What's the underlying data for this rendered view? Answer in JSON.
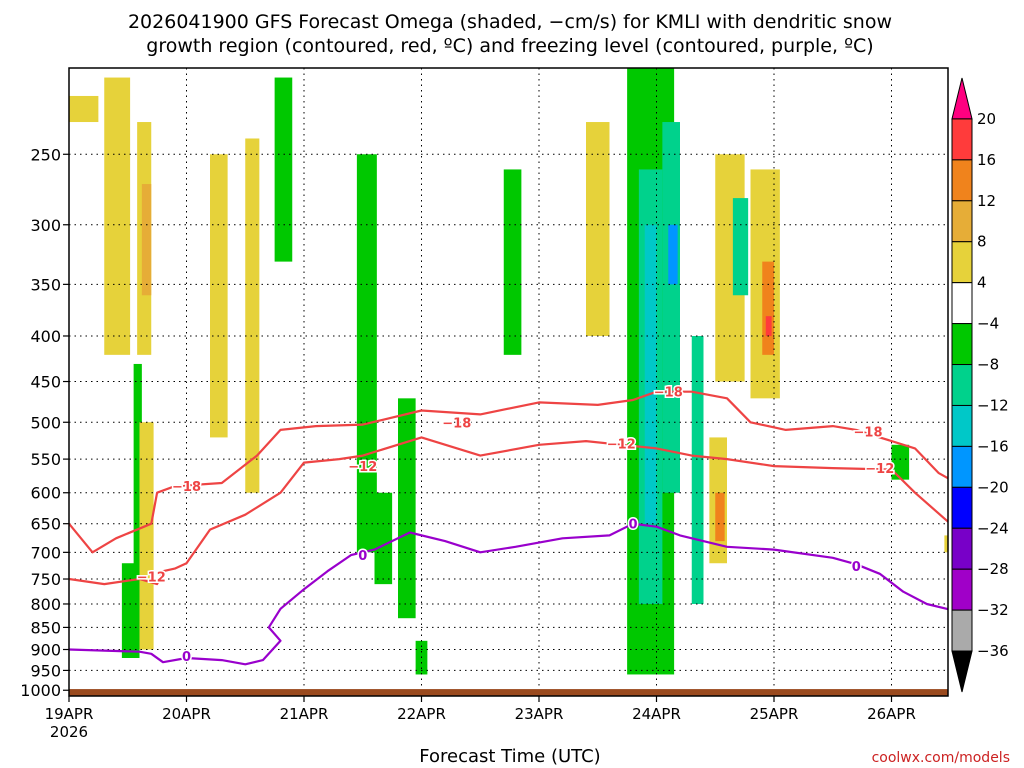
{
  "chart_data": {
    "type": "heatmap",
    "title_line1": "2026041900 GFS Forecast Omega (shaded, −cm/s) for KMLI with dendritic snow",
    "title_line2": "growth region (contoured, red, ºC) and freezing level (contoured, purple, ºC)",
    "xlabel": "Forecast Time (UTC)",
    "watermark": "coolwx.com/models",
    "x_ticks": [
      {
        "day": 0,
        "label": "19APR"
      },
      {
        "day": 1,
        "label": "20APR"
      },
      {
        "day": 2,
        "label": "21APR"
      },
      {
        "day": 3,
        "label": "22APR"
      },
      {
        "day": 4,
        "label": "23APR"
      },
      {
        "day": 5,
        "label": "24APR"
      },
      {
        "day": 6,
        "label": "25APR"
      },
      {
        "day": 7,
        "label": "26APR"
      }
    ],
    "x_year_label": "2026",
    "xlim": [
      0,
      7.5
    ],
    "y_ticks": [
      250,
      300,
      350,
      400,
      450,
      500,
      550,
      600,
      650,
      700,
      750,
      800,
      850,
      900,
      950,
      1000
    ],
    "ylim_hpa": [
      200,
      1015
    ],
    "ground_hpa": 997,
    "colorbar": {
      "labels": [
        "20",
        "16",
        "12",
        "8",
        "4",
        "−4",
        "−8",
        "−12",
        "−16",
        "−20",
        "−24",
        "−28",
        "−32",
        "−36"
      ],
      "colors": [
        "#ff0080",
        "#ff3b3b",
        "#f0831c",
        "#e6ad37",
        "#e6d23a",
        "#ffffff",
        "#00c800",
        "#00d28c",
        "#00c8c8",
        "#0096ff",
        "#0000ff",
        "#7800c8",
        "#a000c8",
        "#aaaaaa",
        "#000000"
      ]
    },
    "colors": {
      "contour_red": "#ee4444",
      "contour_purple": "#9900cc",
      "ground": "#9a4a1e",
      "neg4": "#00c800",
      "neg8": "#00d28c",
      "neg12": "#00c8c8",
      "neg16": "#0096ff",
      "neg20": "#0000ff",
      "pos4": "#e6d23a",
      "pos8": "#e6ad37",
      "pos12": "#f0831c",
      "pos16": "#ff3b3b"
    },
    "contours": [
      {
        "level": "-18",
        "label": "−18",
        "color": "contour_red",
        "points": [
          [
            0,
            650
          ],
          [
            0.2,
            700
          ],
          [
            0.4,
            675
          ],
          [
            0.7,
            650
          ],
          [
            0.75,
            600
          ],
          [
            0.9,
            590
          ],
          [
            1.3,
            585
          ],
          [
            1.6,
            545
          ],
          [
            1.8,
            510
          ],
          [
            2.1,
            505
          ],
          [
            2.5,
            503
          ],
          [
            3,
            485
          ],
          [
            3.5,
            490
          ],
          [
            4,
            475
          ],
          [
            4.5,
            478
          ],
          [
            4.8,
            472
          ],
          [
            5.0,
            462
          ],
          [
            5.3,
            462
          ],
          [
            5.6,
            470
          ],
          [
            5.8,
            500
          ],
          [
            6.1,
            510
          ],
          [
            6.5,
            505
          ],
          [
            6.7,
            510
          ],
          [
            6.9,
            520
          ],
          [
            7.2,
            535
          ],
          [
            7.4,
            570
          ],
          [
            7.5,
            580
          ]
        ],
        "labels": [
          [
            1.0,
            590
          ],
          [
            3.3,
            500
          ],
          [
            5.1,
            462
          ],
          [
            6.8,
            512
          ]
        ]
      },
      {
        "level": "-12",
        "label": "−12",
        "color": "contour_red",
        "points": [
          [
            0,
            750
          ],
          [
            0.3,
            760
          ],
          [
            0.6,
            750
          ],
          [
            0.75,
            760
          ],
          [
            0.8,
            735
          ],
          [
            0.9,
            730
          ],
          [
            1.0,
            720
          ],
          [
            1.2,
            660
          ],
          [
            1.5,
            635
          ],
          [
            1.8,
            600
          ],
          [
            2.0,
            555
          ],
          [
            2.3,
            550
          ],
          [
            2.5,
            545
          ],
          [
            3,
            520
          ],
          [
            3.5,
            545
          ],
          [
            4,
            530
          ],
          [
            4.4,
            525
          ],
          [
            4.7,
            530
          ],
          [
            5.0,
            535
          ],
          [
            5.3,
            545
          ],
          [
            5.6,
            550
          ],
          [
            6.0,
            560
          ],
          [
            6.5,
            563
          ],
          [
            7.0,
            565
          ],
          [
            7.2,
            600
          ],
          [
            7.5,
            650
          ]
        ],
        "labels": [
          [
            0.7,
            745
          ],
          [
            2.5,
            560
          ],
          [
            4.7,
            528
          ],
          [
            6.9,
            563
          ]
        ]
      },
      {
        "level": "0",
        "label": "0",
        "color": "contour_purple",
        "points": [
          [
            0,
            900
          ],
          [
            0.6,
            905
          ],
          [
            0.7,
            910
          ],
          [
            0.8,
            930
          ],
          [
            1.0,
            920
          ],
          [
            1.3,
            925
          ],
          [
            1.5,
            935
          ],
          [
            1.65,
            925
          ],
          [
            1.8,
            880
          ],
          [
            1.7,
            850
          ],
          [
            1.8,
            810
          ],
          [
            2.0,
            770
          ],
          [
            2.2,
            735
          ],
          [
            2.4,
            705
          ],
          [
            2.6,
            695
          ],
          [
            2.9,
            665
          ],
          [
            3.2,
            680
          ],
          [
            3.5,
            700
          ],
          [
            3.8,
            690
          ],
          [
            4.2,
            675
          ],
          [
            4.6,
            670
          ],
          [
            4.8,
            650
          ],
          [
            5.0,
            655
          ],
          [
            5.2,
            670
          ],
          [
            5.6,
            690
          ],
          [
            6.0,
            695
          ],
          [
            6.5,
            710
          ],
          [
            6.7,
            722
          ],
          [
            6.9,
            740
          ],
          [
            7.1,
            775
          ],
          [
            7.3,
            800
          ],
          [
            7.5,
            812
          ]
        ],
        "labels": [
          [
            1.0,
            915
          ],
          [
            2.5,
            705
          ],
          [
            4.8,
            650
          ],
          [
            6.7,
            725
          ]
        ]
      }
    ],
    "omega_cells": [
      {
        "x0": 0.0,
        "x1": 0.25,
        "p0": 215,
        "p1": 230,
        "c": "pos4"
      },
      {
        "x0": 0.3,
        "x1": 0.52,
        "p0": 205,
        "p1": 420,
        "c": "pos4"
      },
      {
        "x0": 0.55,
        "x1": 0.62,
        "p0": 430,
        "p1": 770,
        "c": "neg4"
      },
      {
        "x0": 0.58,
        "x1": 0.7,
        "p0": 230,
        "p1": 420,
        "c": "pos4"
      },
      {
        "x0": 0.62,
        "x1": 0.7,
        "p0": 270,
        "p1": 360,
        "c": "pos8"
      },
      {
        "x0": 0.45,
        "x1": 0.6,
        "p0": 720,
        "p1": 920,
        "c": "neg4"
      },
      {
        "x0": 0.6,
        "x1": 0.72,
        "p0": 500,
        "p1": 900,
        "c": "pos4"
      },
      {
        "x0": 1.2,
        "x1": 1.35,
        "p0": 250,
        "p1": 520,
        "c": "pos4"
      },
      {
        "x0": 1.5,
        "x1": 1.62,
        "p0": 240,
        "p1": 600,
        "c": "pos4"
      },
      {
        "x0": 1.75,
        "x1": 1.9,
        "p0": 205,
        "p1": 330,
        "c": "neg4"
      },
      {
        "x0": 2.45,
        "x1": 2.62,
        "p0": 250,
        "p1": 700,
        "c": "neg4"
      },
      {
        "x0": 2.6,
        "x1": 2.75,
        "p0": 600,
        "p1": 760,
        "c": "neg4"
      },
      {
        "x0": 2.8,
        "x1": 2.95,
        "p0": 470,
        "p1": 830,
        "c": "neg4"
      },
      {
        "x0": 2.95,
        "x1": 3.05,
        "p0": 880,
        "p1": 960,
        "c": "neg4"
      },
      {
        "x0": 3.7,
        "x1": 3.85,
        "p0": 260,
        "p1": 420,
        "c": "neg4"
      },
      {
        "x0": 4.4,
        "x1": 4.6,
        "p0": 230,
        "p1": 400,
        "c": "pos4"
      },
      {
        "x0": 4.75,
        "x1": 5.15,
        "p0": 200,
        "p1": 960,
        "c": "neg4"
      },
      {
        "x0": 4.85,
        "x1": 5.05,
        "p0": 260,
        "p1": 800,
        "c": "neg8"
      },
      {
        "x0": 4.9,
        "x1": 5.0,
        "p0": 300,
        "p1": 650,
        "c": "neg12"
      },
      {
        "x0": 5.05,
        "x1": 5.2,
        "p0": 230,
        "p1": 600,
        "c": "neg8"
      },
      {
        "x0": 5.1,
        "x1": 5.18,
        "p0": 300,
        "p1": 350,
        "c": "neg16"
      },
      {
        "x0": 5.3,
        "x1": 5.4,
        "p0": 400,
        "p1": 800,
        "c": "neg8"
      },
      {
        "x0": 5.45,
        "x1": 5.6,
        "p0": 520,
        "p1": 720,
        "c": "pos4"
      },
      {
        "x0": 5.5,
        "x1": 5.58,
        "p0": 600,
        "p1": 680,
        "c": "pos12"
      },
      {
        "x0": 5.5,
        "x1": 5.75,
        "p0": 250,
        "p1": 450,
        "c": "pos4"
      },
      {
        "x0": 5.65,
        "x1": 5.78,
        "p0": 280,
        "p1": 360,
        "c": "neg8"
      },
      {
        "x0": 5.8,
        "x1": 6.05,
        "p0": 260,
        "p1": 470,
        "c": "pos4"
      },
      {
        "x0": 5.9,
        "x1": 6.0,
        "p0": 330,
        "p1": 420,
        "c": "pos12"
      },
      {
        "x0": 5.93,
        "x1": 5.98,
        "p0": 380,
        "p1": 400,
        "c": "pos16"
      },
      {
        "x0": 7.0,
        "x1": 7.15,
        "p0": 530,
        "p1": 580,
        "c": "neg4"
      },
      {
        "x0": 7.45,
        "x1": 7.5,
        "p0": 670,
        "p1": 700,
        "c": "pos4"
      }
    ]
  }
}
